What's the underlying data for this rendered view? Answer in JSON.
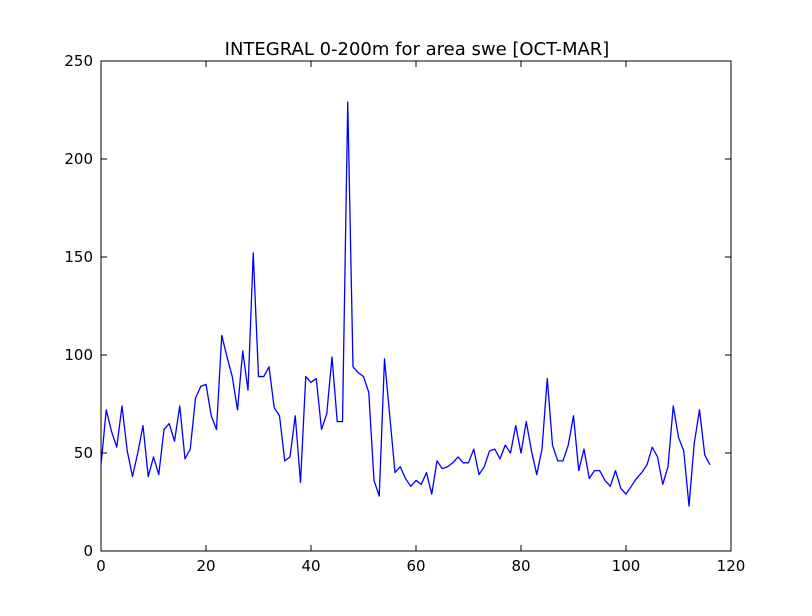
{
  "chart_data": {
    "type": "line",
    "title": "INTEGRAL 0-200m for area swe [OCT-MAR]",
    "xlabel": "",
    "ylabel": "",
    "xlim": [
      0,
      120
    ],
    "ylim": [
      0,
      250
    ],
    "xticks": [
      0,
      20,
      40,
      60,
      80,
      100,
      120
    ],
    "xtick_labels": [
      "0",
      "20",
      "40",
      "60",
      "80",
      "100",
      "120"
    ],
    "yticks": [
      0,
      50,
      100,
      150,
      200,
      250
    ],
    "ytick_labels": [
      "0",
      "50",
      "100",
      "150",
      "200",
      "250"
    ],
    "grid": false,
    "legend": "none",
    "series": [
      {
        "color": "#0000ff",
        "x": [
          0,
          1,
          2,
          3,
          4,
          5,
          6,
          7,
          8,
          9,
          10,
          11,
          12,
          13,
          14,
          15,
          16,
          17,
          18,
          19,
          20,
          21,
          22,
          23,
          24,
          25,
          26,
          27,
          28,
          29,
          30,
          31,
          32,
          33,
          34,
          35,
          36,
          37,
          38,
          39,
          40,
          41,
          42,
          43,
          44,
          45,
          46,
          47,
          48,
          49,
          50,
          51,
          52,
          53,
          54,
          55,
          56,
          57,
          58,
          59,
          60,
          61,
          62,
          63,
          64,
          65,
          66,
          67,
          68,
          69,
          70,
          71,
          72,
          73,
          74,
          75,
          76,
          77,
          78,
          79,
          80,
          81,
          82,
          83,
          84,
          85,
          86,
          87,
          88,
          89,
          90,
          91,
          92,
          93,
          94,
          95,
          96,
          97,
          98,
          99,
          100,
          101,
          102,
          103,
          104,
          105,
          106,
          107,
          108,
          109,
          110,
          111,
          112,
          113,
          114,
          115,
          116
        ],
        "values": [
          44,
          72,
          61,
          53,
          74,
          51,
          38,
          50,
          64,
          38,
          48,
          39,
          62,
          65,
          56,
          74,
          47,
          52,
          78,
          84,
          85,
          69,
          62,
          110,
          99,
          89,
          72,
          102,
          82,
          152,
          89,
          89,
          94,
          73,
          69,
          46,
          48,
          69,
          35,
          89,
          86,
          88,
          62,
          70,
          99,
          66,
          66,
          229,
          94,
          91,
          89,
          81,
          36,
          28,
          98,
          69,
          40,
          43,
          37,
          33,
          36,
          34,
          40,
          29,
          46,
          42,
          43,
          45,
          48,
          45,
          45,
          52,
          39,
          43,
          51,
          52,
          47,
          54,
          50,
          64,
          50,
          66,
          51,
          39,
          52,
          88,
          54,
          46,
          46,
          54,
          69,
          41,
          52,
          37,
          41,
          41,
          36,
          33,
          41,
          32,
          29,
          33,
          37,
          40,
          44,
          53,
          48,
          34,
          43,
          74,
          58,
          51,
          23,
          55,
          72,
          49,
          44
        ]
      }
    ]
  }
}
